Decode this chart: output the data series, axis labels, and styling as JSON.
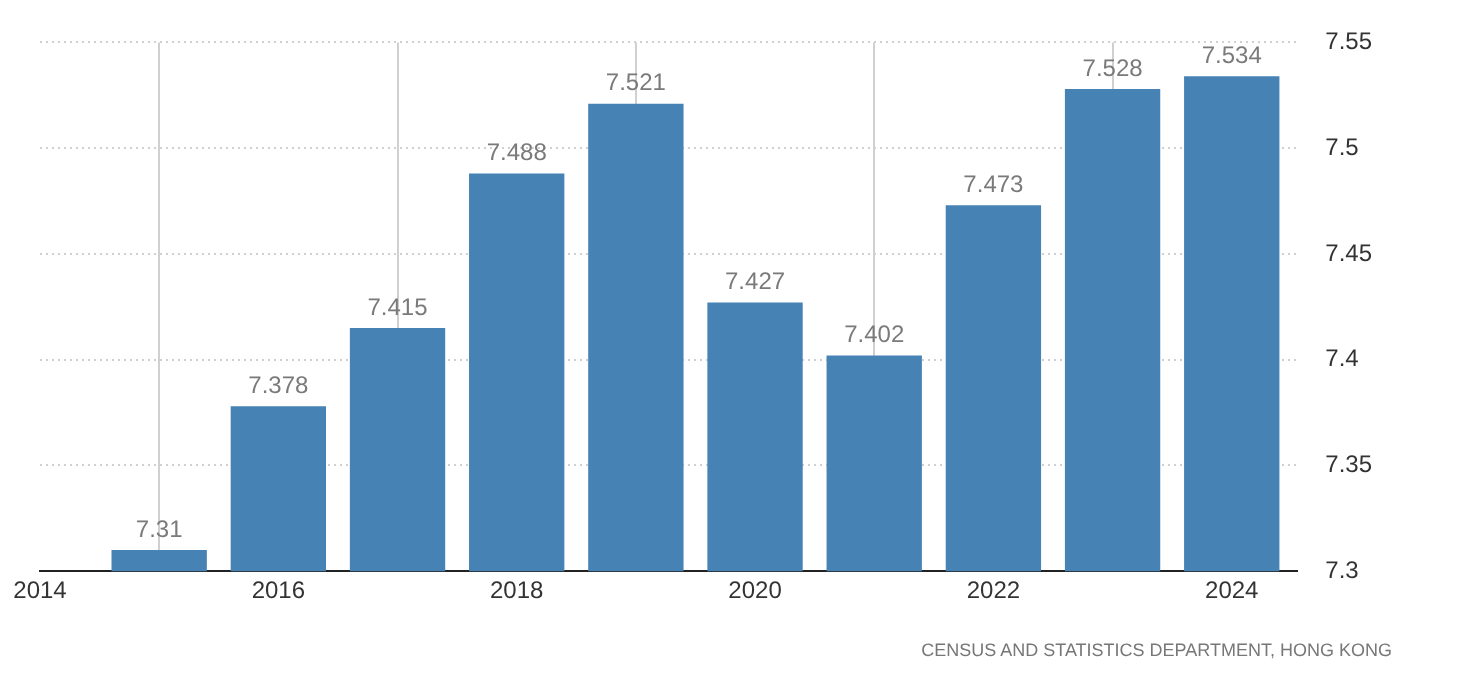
{
  "chart_data": {
    "type": "bar",
    "x": [
      2015,
      2016,
      2017,
      2018,
      2019,
      2020,
      2021,
      2022,
      2023,
      2024
    ],
    "values": [
      7.31,
      7.378,
      7.415,
      7.488,
      7.521,
      7.427,
      7.402,
      7.473,
      7.528,
      7.534
    ],
    "color": "#4682b4",
    "xlim": [
      2014,
      2024.55
    ],
    "xticks": [
      2014,
      2016,
      2018,
      2020,
      2022,
      2024
    ],
    "ylim": [
      7.3,
      7.55
    ],
    "yticks": [
      7.3,
      7.35,
      7.4,
      7.45,
      7.5,
      7.55
    ],
    "grid": true,
    "data_labels": true,
    "legend": false,
    "annotations": [
      "CENSUS AND STATISTICS DEPARTMENT, HONG KONG"
    ]
  }
}
